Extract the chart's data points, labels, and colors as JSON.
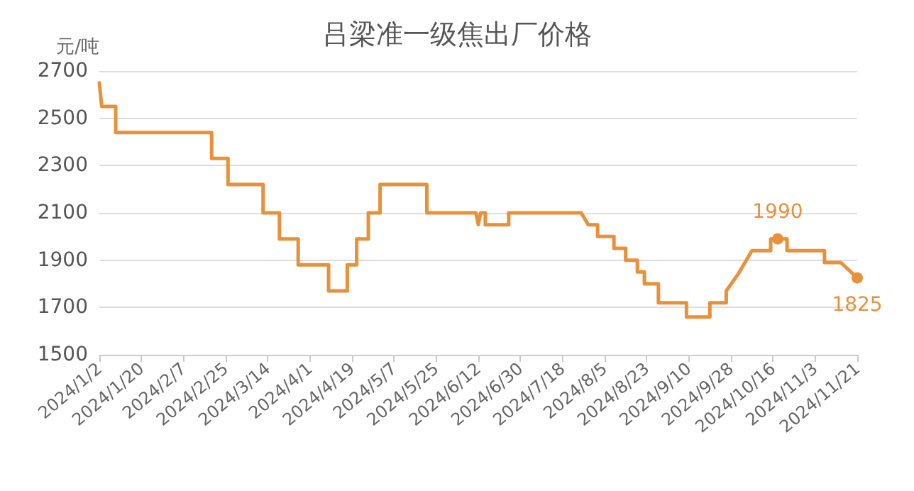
{
  "chart_data": {
    "type": "line",
    "title": "吕梁准一级焦出厂价格",
    "ylabel": "元/吨",
    "series": [
      {
        "color": "#e8913a",
        "x": [
          "2024-01-02",
          "2024-01-03",
          "2024-01-09",
          "2024-01-09",
          "2024-02-19",
          "2024-02-19",
          "2024-02-26",
          "2024-02-26",
          "2024-03-12",
          "2024-03-12",
          "2024-03-19",
          "2024-03-19",
          "2024-03-27",
          "2024-03-27",
          "2024-04-09",
          "2024-04-09",
          "2024-04-17",
          "2024-04-17",
          "2024-04-21",
          "2024-04-21",
          "2024-04-26",
          "2024-04-26",
          "2024-05-01",
          "2024-05-01",
          "2024-05-21",
          "2024-05-21",
          "2024-06-11",
          "2024-06-12",
          "2024-06-13",
          "2024-06-15",
          "2024-06-15",
          "2024-06-25",
          "2024-06-25",
          "2024-07-26",
          "2024-07-29",
          "2024-08-02",
          "2024-08-02",
          "2024-08-09",
          "2024-08-09",
          "2024-08-14",
          "2024-08-14",
          "2024-08-19",
          "2024-08-19",
          "2024-08-22",
          "2024-08-22",
          "2024-08-28",
          "2024-08-28",
          "2024-09-09",
          "2024-09-09",
          "2024-09-19",
          "2024-09-19",
          "2024-09-26",
          "2024-09-26",
          "2024-10-01",
          "2024-10-07",
          "2024-10-15",
          "2024-10-15",
          "2024-10-22",
          "2024-10-22",
          "2024-11-07",
          "2024-11-07",
          "2024-11-14",
          "2024-11-21"
        ],
        "values": [
          2650,
          2550,
          2550,
          2440,
          2440,
          2330,
          2330,
          2220,
          2220,
          2100,
          2100,
          1990,
          1990,
          1880,
          1880,
          1770,
          1770,
          1880,
          1880,
          1990,
          1990,
          2100,
          2100,
          2220,
          2220,
          2100,
          2100,
          2050,
          2100,
          2100,
          2050,
          2050,
          2100,
          2100,
          2050,
          2050,
          2000,
          2000,
          1950,
          1950,
          1900,
          1900,
          1850,
          1850,
          1800,
          1800,
          1720,
          1720,
          1660,
          1660,
          1720,
          1720,
          1770,
          1840,
          1940,
          1940,
          1990,
          1990,
          1940,
          1940,
          1890,
          1890,
          1825
        ]
      }
    ],
    "annotations": [
      {
        "text": "1990",
        "x": "2024-10-18",
        "y": 1990
      },
      {
        "text": "1825",
        "x": "2024-11-21",
        "y": 1825
      }
    ],
    "xlim": [
      "2024-01-02",
      "2024-11-21"
    ],
    "xticks": [
      {
        "value": "2024-01-02",
        "label": "2024/1/2"
      },
      {
        "value": "2024-01-20",
        "label": "2024/1/20"
      },
      {
        "value": "2024-02-07",
        "label": "2024/2/7"
      },
      {
        "value": "2024-02-25",
        "label": "2024/2/25"
      },
      {
        "value": "2024-03-14",
        "label": "2024/3/14"
      },
      {
        "value": "2024-04-01",
        "label": "2024/4/1"
      },
      {
        "value": "2024-04-19",
        "label": "2024/4/19"
      },
      {
        "value": "2024-05-07",
        "label": "2024/5/7"
      },
      {
        "value": "2024-05-25",
        "label": "2024/5/25"
      },
      {
        "value": "2024-06-12",
        "label": "2024/6/12"
      },
      {
        "value": "2024-06-30",
        "label": "2024/6/30"
      },
      {
        "value": "2024-07-18",
        "label": "2024/7/18"
      },
      {
        "value": "2024-08-05",
        "label": "2024/8/5"
      },
      {
        "value": "2024-08-23",
        "label": "2024/8/23"
      },
      {
        "value": "2024-09-10",
        "label": "2024/9/10"
      },
      {
        "value": "2024-09-28",
        "label": "2024/9/28"
      },
      {
        "value": "2024-10-16",
        "label": "2024/10/16"
      },
      {
        "value": "2024-11-03",
        "label": "2024/11/3"
      },
      {
        "value": "2024-11-21",
        "label": "2024/11/21"
      }
    ],
    "ylim": [
      1500,
      2700
    ],
    "yticks": [
      1500,
      1700,
      1900,
      2100,
      2300,
      2500,
      2700
    ],
    "grid": "y",
    "marker": "none",
    "line_style": "solid"
  }
}
